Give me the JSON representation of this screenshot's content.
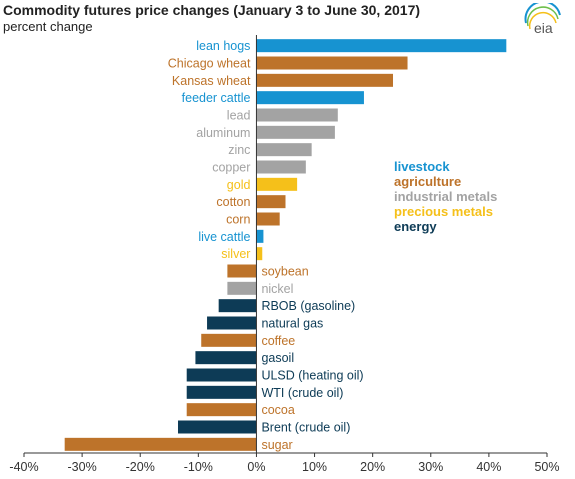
{
  "header": {
    "title": "Commodity futures price changes (January 3 to June 30, 2017)",
    "subtitle": "percent change",
    "logo_text": "eia"
  },
  "colors": {
    "livestock": "#1793d1",
    "agriculture": "#bd732a",
    "industrial metals": "#a3a3a3",
    "precious metals": "#f5c01a",
    "energy": "#0d3b56",
    "axis": "#333333",
    "grid": "#d9d9d9"
  },
  "legend": {
    "items": [
      {
        "label": "livestock",
        "group": "livestock"
      },
      {
        "label": "agriculture",
        "group": "agriculture"
      },
      {
        "label": "industrial metals",
        "group": "industrial metals"
      },
      {
        "label": "precious metals",
        "group": "precious metals"
      },
      {
        "label": "energy",
        "group": "energy"
      }
    ]
  },
  "chart_data": {
    "type": "bar",
    "orientation": "horizontal",
    "title": "Commodity futures price changes (January 3 to June 30, 2017)",
    "ylabel": "percent change",
    "xlim": [
      -40,
      50
    ],
    "xticks": [
      -40,
      -30,
      -20,
      -10,
      0,
      10,
      20,
      30,
      40,
      50
    ],
    "xtick_labels": [
      "-40%",
      "-30%",
      "-20%",
      "-10%",
      "0%",
      "10%",
      "20%",
      "30%",
      "40%",
      "50%"
    ],
    "grid": false,
    "legend_position": "right",
    "categories": [
      "lean hogs",
      "Chicago wheat",
      "Kansas wheat",
      "feeder cattle",
      "lead",
      "aluminum",
      "zinc",
      "copper",
      "gold",
      "cotton",
      "corn",
      "live cattle",
      "silver",
      "soybean",
      "nickel",
      "RBOB (gasoline)",
      "natural gas",
      "coffee",
      "gasoil",
      "ULSD (heating oil)",
      "WTI (crude oil)",
      "cocoa",
      "Brent (crude oil)",
      "sugar"
    ],
    "groups": [
      "livestock",
      "agriculture",
      "agriculture",
      "livestock",
      "industrial metals",
      "industrial metals",
      "industrial metals",
      "industrial metals",
      "precious metals",
      "agriculture",
      "agriculture",
      "livestock",
      "precious metals",
      "agriculture",
      "industrial metals",
      "energy",
      "energy",
      "agriculture",
      "energy",
      "energy",
      "energy",
      "agriculture",
      "energy",
      "agriculture"
    ],
    "values": [
      43,
      26,
      23.5,
      18.5,
      14,
      13.5,
      9.5,
      8.5,
      7,
      5,
      4,
      1.2,
      1,
      -5,
      -5,
      -6.5,
      -8.5,
      -9.5,
      -10.5,
      -12,
      -12,
      -12,
      -13.5,
      -33
    ]
  }
}
